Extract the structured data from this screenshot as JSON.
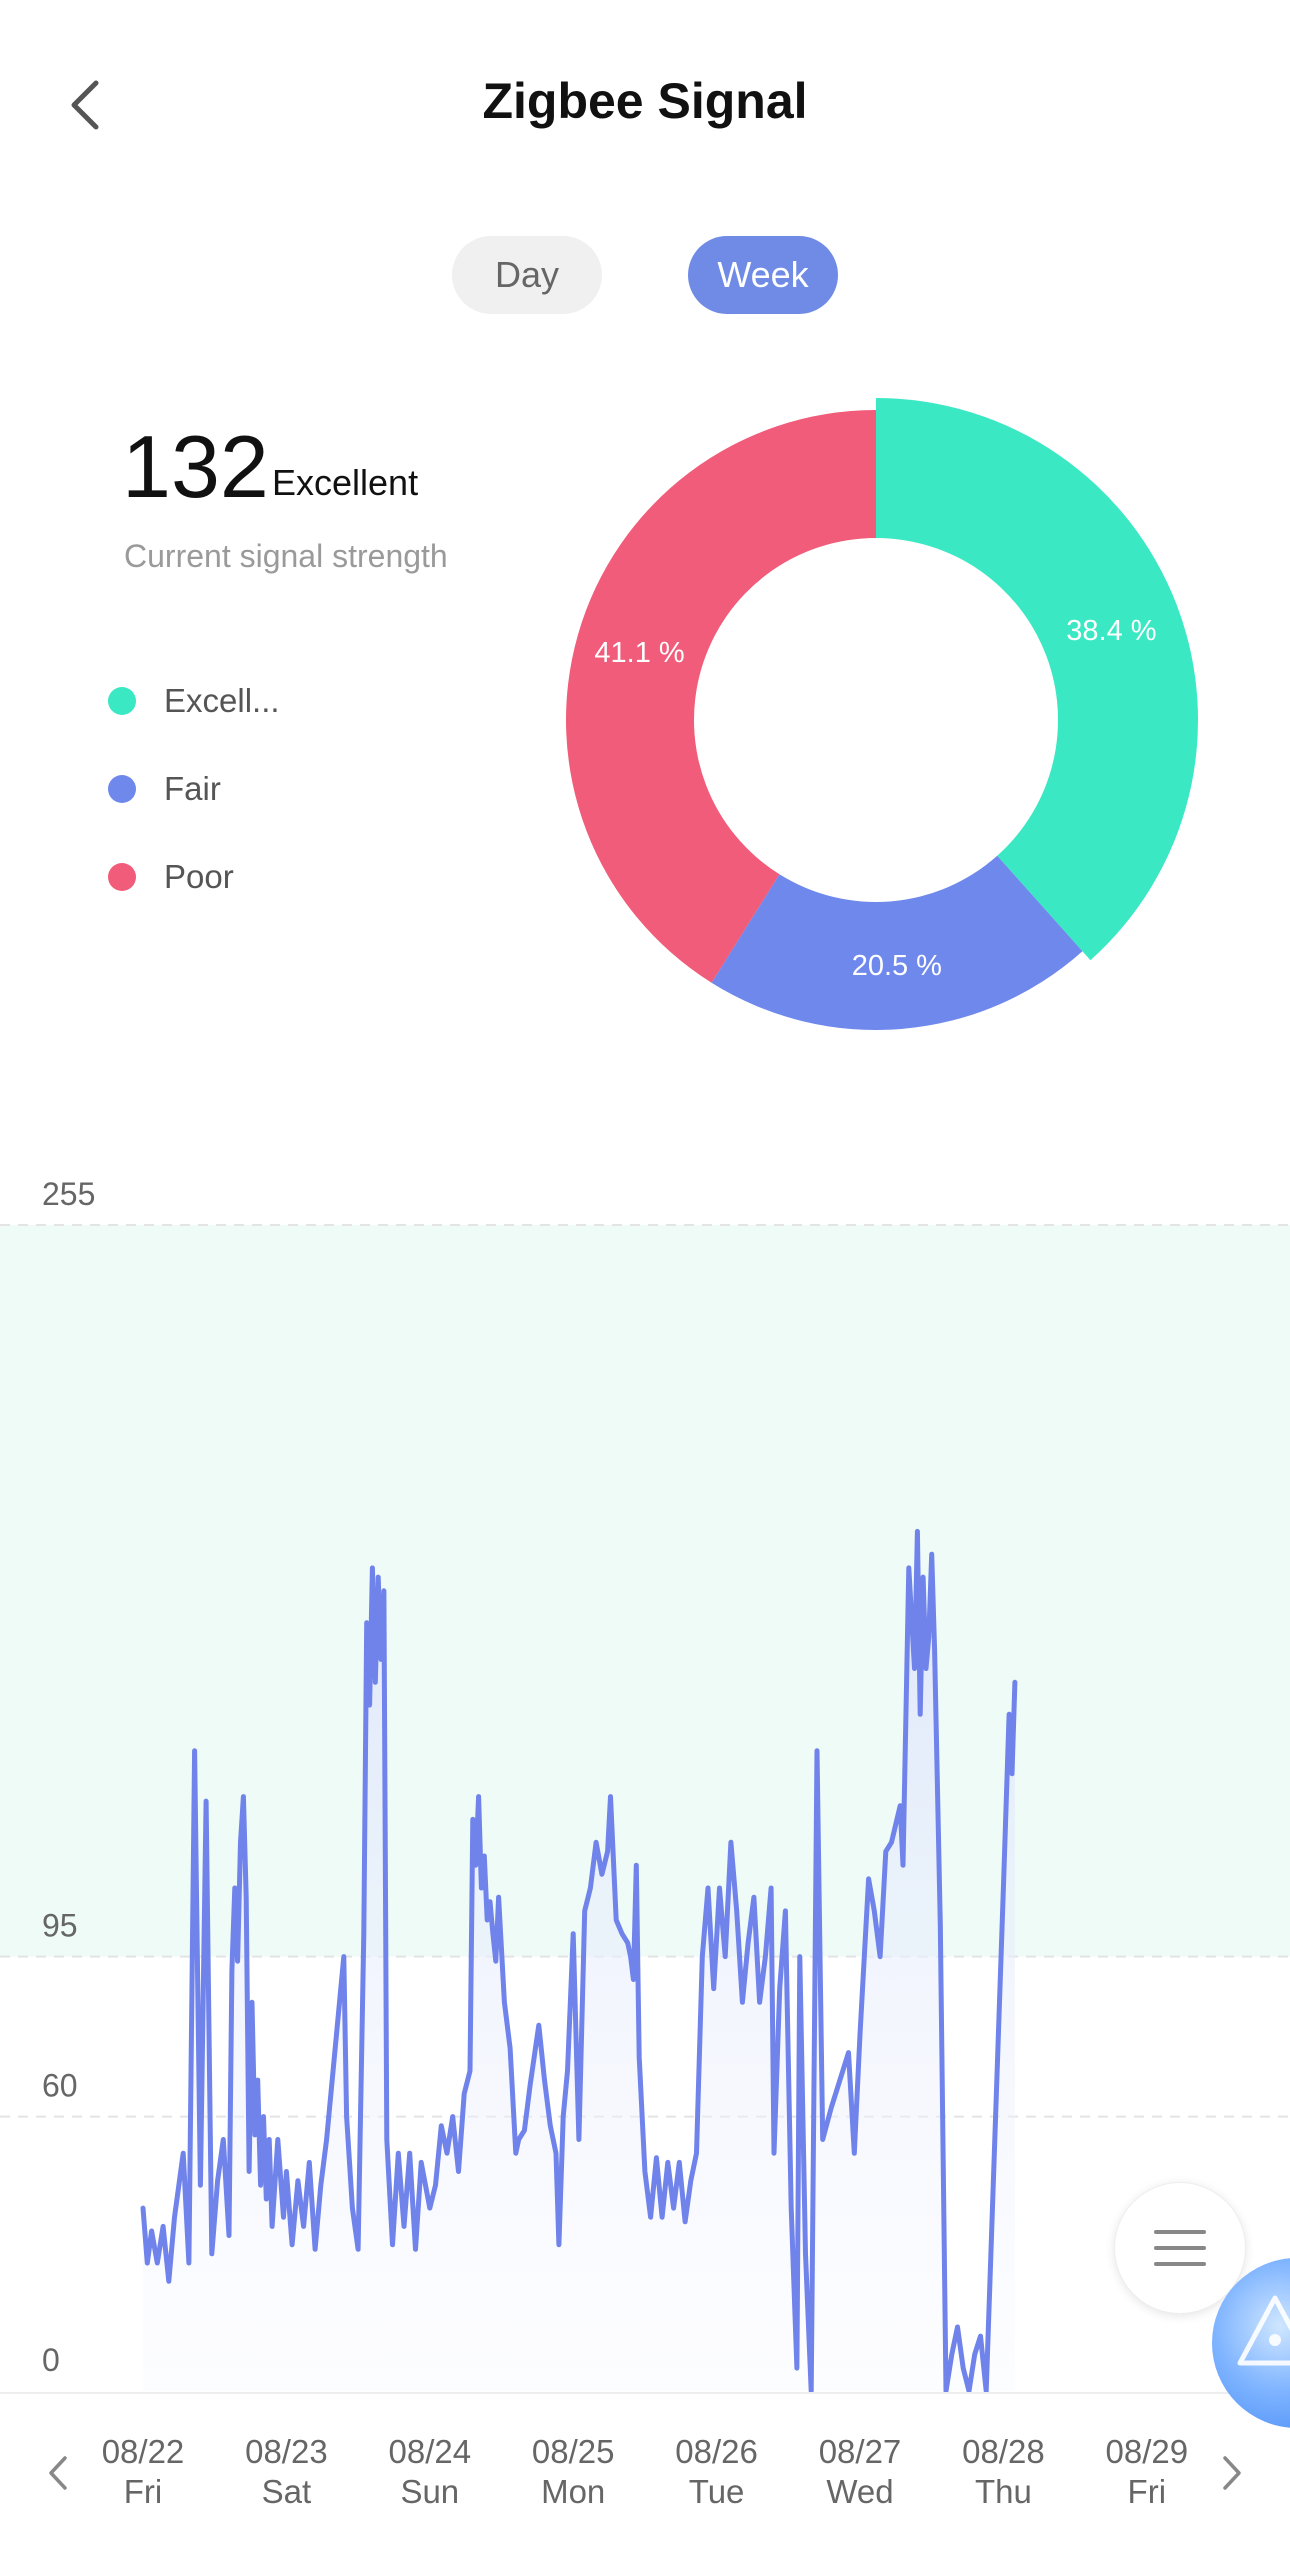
{
  "header": {
    "title": "Zigbee Signal",
    "back_icon": "chevron-left-icon"
  },
  "tabs": [
    {
      "label": "Day",
      "active": false
    },
    {
      "label": "Week",
      "active": true
    }
  ],
  "current": {
    "value": "132",
    "quality": "Excellent",
    "caption": "Current signal strength"
  },
  "legend": [
    {
      "label": "Excell...",
      "color": "#3be8c4"
    },
    {
      "label": "Fair",
      "color": "#6f88ec"
    },
    {
      "label": "Poor",
      "color": "#f05c79"
    }
  ],
  "donut": {
    "slices": [
      {
        "category": "Excellent",
        "percent": 38.4,
        "label": "38.4 %",
        "color": "#3be8c4"
      },
      {
        "category": "Fair",
        "percent": 20.5,
        "label": "20.5 %",
        "color": "#6f88ec"
      },
      {
        "category": "Poor",
        "percent": 41.1,
        "label": "41.1 %",
        "color": "#f05c79"
      }
    ]
  },
  "chart_data": {
    "type": "line",
    "ylim": [
      0,
      255
    ],
    "y_ticks": [
      "255",
      "95",
      "60",
      "0"
    ],
    "threshold_lines": [
      255,
      95,
      60
    ],
    "excellent_zone": [
      95,
      255
    ],
    "line_color": "#6f83eb",
    "x_labels": [
      {
        "date": "08/22",
        "day": "Fri"
      },
      {
        "date": "08/23",
        "day": "Sat"
      },
      {
        "date": "08/24",
        "day": "Sun"
      },
      {
        "date": "08/25",
        "day": "Mon"
      },
      {
        "date": "08/26",
        "day": "Tue"
      },
      {
        "date": "08/27",
        "day": "Wed"
      },
      {
        "date": "08/28",
        "day": "Thu"
      },
      {
        "date": "08/29",
        "day": "Fri"
      }
    ],
    "series": [
      {
        "values": [
          [
            0.0,
            40
          ],
          [
            0.03,
            28
          ],
          [
            0.06,
            35
          ],
          [
            0.1,
            28
          ],
          [
            0.14,
            36
          ],
          [
            0.18,
            24
          ],
          [
            0.22,
            38
          ],
          [
            0.28,
            52
          ],
          [
            0.32,
            28
          ],
          [
            0.36,
            140
          ],
          [
            0.4,
            45
          ],
          [
            0.44,
            129
          ],
          [
            0.48,
            30
          ],
          [
            0.52,
            46
          ],
          [
            0.56,
            55
          ],
          [
            0.6,
            34
          ],
          [
            0.62,
            92
          ],
          [
            0.64,
            110
          ],
          [
            0.66,
            94
          ],
          [
            0.68,
            120
          ],
          [
            0.7,
            130
          ],
          [
            0.72,
            108
          ],
          [
            0.74,
            48
          ],
          [
            0.76,
            85
          ],
          [
            0.78,
            56
          ],
          [
            0.8,
            68
          ],
          [
            0.82,
            45
          ],
          [
            0.84,
            60
          ],
          [
            0.86,
            42
          ],
          [
            0.88,
            55
          ],
          [
            0.9,
            36
          ],
          [
            0.94,
            55
          ],
          [
            0.98,
            38
          ],
          [
            1.0,
            48
          ],
          [
            1.04,
            32
          ],
          [
            1.08,
            46
          ],
          [
            1.12,
            36
          ],
          [
            1.16,
            50
          ],
          [
            1.2,
            31
          ],
          [
            1.24,
            45
          ],
          [
            1.28,
            55
          ],
          [
            1.4,
            95
          ],
          [
            1.42,
            60
          ],
          [
            1.46,
            40
          ],
          [
            1.5,
            31
          ],
          [
            1.54,
            100
          ],
          [
            1.56,
            168
          ],
          [
            1.58,
            150
          ],
          [
            1.6,
            180
          ],
          [
            1.62,
            155
          ],
          [
            1.64,
            178
          ],
          [
            1.66,
            160
          ],
          [
            1.68,
            175
          ],
          [
            1.7,
            55
          ],
          [
            1.74,
            32
          ],
          [
            1.78,
            52
          ],
          [
            1.82,
            36
          ],
          [
            1.86,
            52
          ],
          [
            1.9,
            31
          ],
          [
            1.94,
            50
          ],
          [
            2.0,
            40
          ],
          [
            2.04,
            45
          ],
          [
            2.08,
            58
          ],
          [
            2.12,
            52
          ],
          [
            2.16,
            60
          ],
          [
            2.2,
            48
          ],
          [
            2.24,
            65
          ],
          [
            2.28,
            70
          ],
          [
            2.3,
            125
          ],
          [
            2.32,
            115
          ],
          [
            2.34,
            130
          ],
          [
            2.36,
            110
          ],
          [
            2.38,
            117
          ],
          [
            2.4,
            103
          ],
          [
            2.42,
            107
          ],
          [
            2.44,
            100
          ],
          [
            2.46,
            94
          ],
          [
            2.48,
            108
          ],
          [
            2.52,
            85
          ],
          [
            2.56,
            75
          ],
          [
            2.6,
            52
          ],
          [
            2.62,
            55
          ],
          [
            2.66,
            57
          ],
          [
            2.7,
            67
          ],
          [
            2.76,
            80
          ],
          [
            2.8,
            68
          ],
          [
            2.84,
            58
          ],
          [
            2.88,
            52
          ],
          [
            2.9,
            32
          ],
          [
            2.93,
            60
          ],
          [
            2.96,
            70
          ],
          [
            3.0,
            100
          ],
          [
            3.04,
            55
          ],
          [
            3.08,
            105
          ],
          [
            3.12,
            110
          ],
          [
            3.16,
            120
          ],
          [
            3.2,
            113
          ],
          [
            3.24,
            118
          ],
          [
            3.26,
            130
          ],
          [
            3.3,
            103
          ],
          [
            3.34,
            100
          ],
          [
            3.38,
            98
          ],
          [
            3.4,
            95
          ],
          [
            3.42,
            90
          ],
          [
            3.44,
            115
          ],
          [
            3.46,
            73
          ],
          [
            3.5,
            48
          ],
          [
            3.54,
            38
          ],
          [
            3.58,
            51
          ],
          [
            3.62,
            38
          ],
          [
            3.66,
            50
          ],
          [
            3.7,
            40
          ],
          [
            3.74,
            50
          ],
          [
            3.78,
            37
          ],
          [
            3.82,
            46
          ],
          [
            3.86,
            52
          ],
          [
            3.9,
            95
          ],
          [
            3.94,
            110
          ],
          [
            3.98,
            88
          ],
          [
            4.02,
            110
          ],
          [
            4.06,
            95
          ],
          [
            4.1,
            120
          ],
          [
            4.14,
            105
          ],
          [
            4.18,
            85
          ],
          [
            4.22,
            98
          ],
          [
            4.26,
            108
          ],
          [
            4.3,
            85
          ],
          [
            4.34,
            95
          ],
          [
            4.38,
            110
          ],
          [
            4.4,
            52
          ],
          [
            4.44,
            88
          ],
          [
            4.48,
            105
          ],
          [
            4.52,
            40
          ],
          [
            4.56,
            5
          ],
          [
            4.58,
            95
          ],
          [
            4.62,
            30
          ],
          [
            4.66,
            0
          ],
          [
            4.7,
            140
          ],
          [
            4.74,
            55
          ],
          [
            4.8,
            62
          ],
          [
            4.86,
            68
          ],
          [
            4.92,
            74
          ],
          [
            4.96,
            52
          ],
          [
            5.0,
            78
          ],
          [
            5.06,
            112
          ],
          [
            5.1,
            105
          ],
          [
            5.14,
            95
          ],
          [
            5.18,
            118
          ],
          [
            5.22,
            120
          ],
          [
            5.28,
            128
          ],
          [
            5.3,
            115
          ],
          [
            5.34,
            180
          ],
          [
            5.38,
            158
          ],
          [
            5.4,
            188
          ],
          [
            5.42,
            148
          ],
          [
            5.44,
            178
          ],
          [
            5.46,
            158
          ],
          [
            5.48,
            165
          ],
          [
            5.5,
            183
          ],
          [
            5.52,
            162
          ],
          [
            5.56,
            102
          ],
          [
            5.6,
            0
          ],
          [
            5.64,
            8
          ],
          [
            5.68,
            14
          ],
          [
            5.72,
            5
          ],
          [
            5.76,
            0
          ],
          [
            5.8,
            8
          ],
          [
            5.84,
            12
          ],
          [
            5.88,
            0
          ],
          [
            6.0,
            110
          ],
          [
            6.04,
            148
          ],
          [
            6.06,
            135
          ],
          [
            6.08,
            155
          ]
        ]
      }
    ]
  },
  "floating": {
    "menu_icon": "hamburger-menu-icon",
    "assistant_icon": "ai-assistant-icon"
  },
  "nav": {
    "prev_icon": "chevron-left-icon",
    "next_icon": "chevron-right-icon"
  }
}
